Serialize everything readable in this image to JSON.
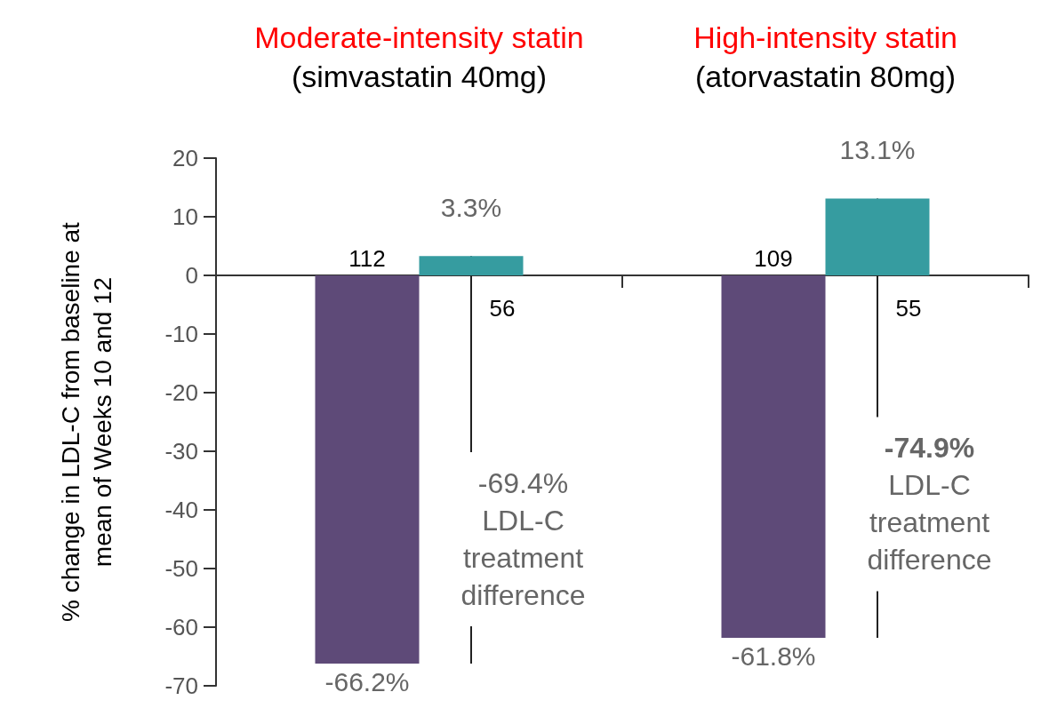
{
  "chart_data": {
    "type": "bar",
    "ylabel": "% change in LDL-C from baseline at\nmean of Weeks 10 and 12",
    "categories": [
      "Moderate-intensity statin\n(simvastatin 40mg)",
      "High-intensity statin\n(atorvastatin 80mg)"
    ],
    "series": [
      {
        "color": "#5e4a78",
        "values": [
          -66.2,
          -61.8
        ],
        "value_labels": [
          "-66.2%",
          "-61.8%"
        ]
      },
      {
        "color": "#369ca0",
        "values": [
          3.3,
          13.1
        ],
        "value_labels": [
          "3.3%",
          "13.1%"
        ]
      }
    ],
    "ylim": [
      -70,
      20
    ],
    "yticks": [
      -70,
      -60,
      -50,
      -40,
      -30,
      -20,
      -10,
      0,
      10,
      20
    ],
    "annotations": [
      "112",
      "56",
      {
        "text": "-69.4%\nLDL-C\ntreatment\ndifference",
        "x": "Moderate-intensity statin\n(simvastatin 40mg)",
        "y": -45
      },
      "109",
      "55",
      {
        "text": "-74.9%\nLDL-C\ntreatment\ndifference",
        "x": "High-intensity statin\n(atorvastatin 80mg)",
        "y": -39
      }
    ]
  }
}
